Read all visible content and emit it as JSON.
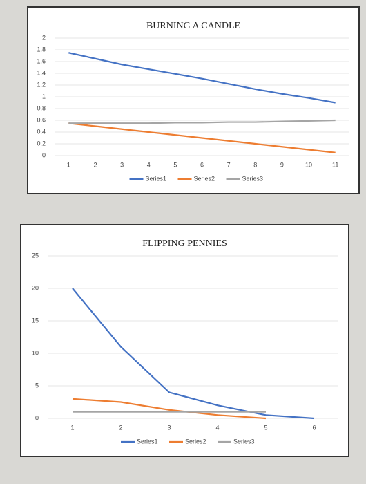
{
  "chart_data": [
    {
      "type": "line",
      "title": "BURNING A CANDLE",
      "categories": [
        "1",
        "2",
        "3",
        "4",
        "5",
        "6",
        "7",
        "8",
        "9",
        "10",
        "11"
      ],
      "series": [
        {
          "name": "Series1",
          "color": "#4472c4",
          "values": [
            1.75,
            1.65,
            1.55,
            1.47,
            1.39,
            1.31,
            1.22,
            1.13,
            1.05,
            0.98,
            0.9
          ]
        },
        {
          "name": "Series2",
          "color": "#ed7d31",
          "values": [
            0.55,
            0.5,
            0.45,
            0.4,
            0.35,
            0.3,
            0.25,
            0.2,
            0.15,
            0.1,
            0.05
          ]
        },
        {
          "name": "Series3",
          "color": "#a5a5a5",
          "values": [
            0.55,
            0.55,
            0.55,
            0.55,
            0.56,
            0.56,
            0.57,
            0.57,
            0.58,
            0.59,
            0.6
          ]
        }
      ],
      "ylim": [
        0,
        2
      ],
      "yticks": [
        0,
        0.2,
        0.4,
        0.6,
        0.8,
        1,
        1.2,
        1.4,
        1.6,
        1.8,
        2
      ],
      "grid": true,
      "legend": "bottom"
    },
    {
      "type": "line",
      "title": "FLIPPING PENNIES",
      "categories": [
        "1",
        "2",
        "3",
        "4",
        "5",
        "6"
      ],
      "series": [
        {
          "name": "Series1",
          "color": "#4472c4",
          "values": [
            20,
            11,
            4,
            2,
            0.5,
            0
          ]
        },
        {
          "name": "Series2",
          "color": "#ed7d31",
          "values": [
            3,
            2.5,
            1.3,
            0.5,
            0,
            null
          ]
        },
        {
          "name": "Series3",
          "color": "#a5a5a5",
          "values": [
            1,
            1,
            1,
            1,
            1,
            null
          ]
        }
      ],
      "ylim": [
        0,
        25
      ],
      "yticks": [
        0,
        5,
        10,
        15,
        20,
        25
      ],
      "grid": true,
      "legend": "bottom"
    }
  ]
}
